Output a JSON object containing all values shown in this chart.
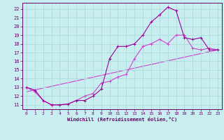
{
  "xlabel": "Windchill (Refroidissement éolien,°C)",
  "bg_color": "#c8eef0",
  "grid_color": "#b0dde0",
  "line_color1": "#990099",
  "line_color2": "#cc44cc",
  "line_color3": "#cc44cc",
  "axis_color": "#660066",
  "xlim": [
    -0.5,
    23.5
  ],
  "ylim": [
    10.5,
    22.7
  ],
  "yticks": [
    11,
    12,
    13,
    14,
    15,
    16,
    17,
    18,
    19,
    20,
    21,
    22
  ],
  "xticks": [
    0,
    1,
    2,
    3,
    4,
    5,
    6,
    7,
    8,
    9,
    10,
    11,
    12,
    13,
    14,
    15,
    16,
    17,
    18,
    19,
    20,
    21,
    22,
    23
  ],
  "series1_x": [
    0,
    1,
    2,
    3,
    4,
    5,
    6,
    7,
    8,
    9,
    10,
    11,
    12,
    13,
    14,
    15,
    16,
    17,
    18,
    19,
    20,
    21,
    22,
    23
  ],
  "series1_y": [
    13.0,
    12.7,
    11.5,
    11.0,
    11.0,
    11.1,
    11.5,
    11.5,
    12.0,
    12.8,
    16.3,
    17.7,
    17.7,
    18.0,
    19.0,
    20.5,
    21.3,
    22.2,
    21.8,
    18.7,
    18.5,
    18.7,
    17.3,
    17.3
  ],
  "series2_x": [
    0,
    1,
    2,
    3,
    4,
    5,
    6,
    7,
    8,
    9,
    10,
    11,
    12,
    13,
    14,
    15,
    16,
    17,
    18,
    19,
    20,
    21,
    22,
    23
  ],
  "series2_y": [
    13.0,
    12.5,
    11.5,
    11.0,
    11.0,
    11.1,
    11.5,
    12.0,
    12.3,
    13.5,
    13.7,
    14.2,
    14.5,
    16.3,
    17.7,
    18.0,
    18.5,
    18.0,
    19.0,
    19.0,
    17.5,
    17.3,
    17.5,
    17.3
  ],
  "series3_x": [
    0,
    23
  ],
  "series3_y": [
    12.5,
    17.3
  ]
}
